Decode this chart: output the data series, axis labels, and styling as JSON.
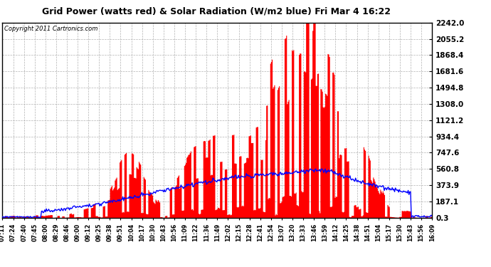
{
  "title": "Grid Power (watts red) & Solar Radiation (W/m2 blue) Fri Mar 4 16:22",
  "copyright": "Copyright 2011 Cartronics.com",
  "ylabel_right_ticks": [
    0.3,
    187.1,
    373.9,
    560.8,
    747.6,
    934.4,
    1121.2,
    1308.0,
    1494.8,
    1681.6,
    1868.4,
    2055.2,
    2242.0
  ],
  "ylim": [
    0.3,
    2242.0
  ],
  "background_color": "#ffffff",
  "plot_bg_color": "#ffffff",
  "grid_color": "#aaaaaa",
  "red_color": "#ff0000",
  "blue_color": "#0000ff",
  "xtick_labels": [
    "07:11",
    "07:24",
    "07:40",
    "07:45",
    "08:00",
    "08:29",
    "08:46",
    "09:00",
    "09:12",
    "09:25",
    "09:38",
    "09:51",
    "10:04",
    "10:17",
    "10:30",
    "10:43",
    "10:56",
    "11:09",
    "11:22",
    "11:36",
    "11:49",
    "12:02",
    "12:15",
    "12:28",
    "12:41",
    "12:54",
    "13:07",
    "13:20",
    "13:33",
    "13:46",
    "13:59",
    "14:12",
    "14:25",
    "14:38",
    "14:51",
    "15:04",
    "15:17",
    "15:30",
    "15:43",
    "15:56",
    "16:09"
  ],
  "n_points": 540
}
